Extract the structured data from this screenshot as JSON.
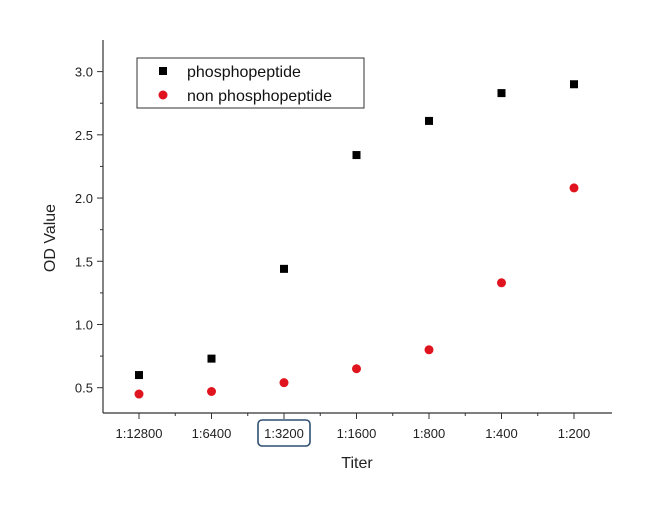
{
  "chart_data": {
    "type": "scatter",
    "xlabel": "Titer",
    "ylabel": "OD Value",
    "categories": [
      "1:12800",
      "1:6400",
      "1:3200",
      "1:1600",
      "1:800",
      "1:400",
      "1:200"
    ],
    "highlighted_category": "1:3200",
    "ylim": [
      0.3,
      3.25
    ],
    "yticks": [
      0.5,
      1.0,
      1.5,
      2.0,
      2.5,
      3.0
    ],
    "ytick_labels": [
      "0.5",
      "1.0",
      "1.5",
      "2.0",
      "2.5",
      "3.0"
    ],
    "grid": false,
    "legend": "top-left",
    "series": [
      {
        "name": "phosphopeptide",
        "marker": "square",
        "color": "#000000",
        "values": [
          0.6,
          0.73,
          1.44,
          2.34,
          2.61,
          2.83,
          2.9
        ]
      },
      {
        "name": "non phosphopeptide",
        "marker": "circle",
        "color": "#e0141e",
        "values": [
          0.45,
          0.47,
          0.54,
          0.65,
          0.8,
          1.33,
          2.08
        ]
      }
    ]
  }
}
